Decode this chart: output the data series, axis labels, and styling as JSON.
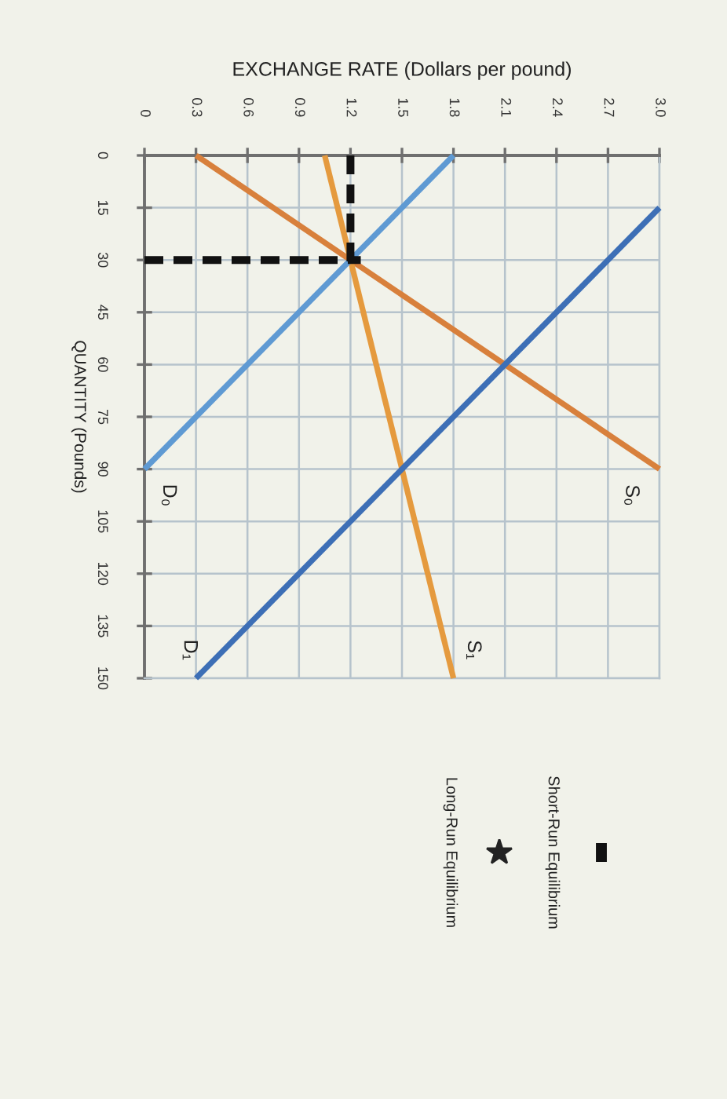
{
  "chart_data": {
    "type": "line",
    "xlabel": "EXCHANGE RATE (Dollars per pound)",
    "ylabel": "QUANTITY (Pounds)",
    "xlim": [
      0,
      3
    ],
    "ylim": [
      150,
      0
    ],
    "xticks": [
      0,
      0.3,
      0.6,
      0.9,
      1.2,
      1.5,
      1.8,
      2.1,
      2.4,
      2.7,
      {
        "value": 3,
        "label": "3.0"
      }
    ],
    "yticks": [
      0,
      15,
      30,
      45,
      60,
      75,
      90,
      105,
      120,
      135,
      150
    ],
    "grid": true,
    "legend": "bottom",
    "series": [
      {
        "name": "S₀",
        "color": "#d8803c",
        "x": [
          0.3,
          3.0
        ],
        "values": [
          0,
          90
        ]
      },
      {
        "name": "S₁",
        "color": "#e59a3e",
        "x": [
          1.05,
          1.8
        ],
        "values": [
          0,
          150
        ]
      },
      {
        "name": "D₀",
        "color": "#5f9ad3",
        "x": [
          1.8,
          0
        ],
        "values": [
          0,
          90
        ]
      },
      {
        "name": "D₁",
        "color": "#3d6fb6",
        "x": [
          3.0,
          0.3
        ],
        "values": [
          15,
          150
        ]
      },
      {
        "name": "Short-Run Equilibrium",
        "color": "#111111",
        "line_style": "dashed",
        "x": [
          0,
          1.26,
          null,
          1.2,
          1.2
        ],
        "values": [
          30,
          30,
          null,
          0,
          33
        ]
      },
      {
        "name": "Long-Run Equilibrium",
        "type": "scatter",
        "marker": "star",
        "color": "#222222"
      }
    ]
  }
}
